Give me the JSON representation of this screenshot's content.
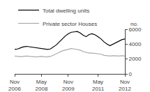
{
  "chart_data": {
    "type": "line",
    "ylabel": "no.",
    "categories": [
      "Nov\n2006",
      null,
      null,
      null,
      null,
      null,
      null,
      null,
      null,
      "May\n2008",
      null,
      null,
      null,
      null,
      null,
      null,
      null,
      null,
      "Nov\n2009",
      null,
      null,
      null,
      null,
      null,
      null,
      null,
      null,
      null,
      "May\n2011",
      null,
      null,
      null,
      null,
      null,
      null,
      null,
      null,
      "Nov\n2012"
    ],
    "series": [
      {
        "name": "Total dwelling units",
        "color": "#000000",
        "values": [
          3300,
          3350,
          3500,
          3650,
          3700,
          3650,
          3550,
          3500,
          3450,
          3400,
          3350,
          3300,
          3350,
          3600,
          3900,
          4300,
          4700,
          5100,
          5400,
          5600,
          5650,
          5700,
          5500,
          5200,
          5000,
          5300,
          5400,
          5250,
          5000,
          4700,
          4300,
          4000,
          3800,
          4000,
          4200,
          4400,
          4600,
          4700
        ]
      },
      {
        "name": "Private sector Houses",
        "color": "#aaaaaa",
        "values": [
          2400,
          2350,
          2300,
          2350,
          2400,
          2350,
          2300,
          2280,
          2300,
          2350,
          2300,
          2280,
          2350,
          2500,
          2700,
          2900,
          3100,
          3200,
          3300,
          3400,
          3350,
          3300,
          3200,
          3000,
          2900,
          2800,
          2800,
          2750,
          2700,
          2650,
          2500,
          2450,
          2400,
          2450,
          2400,
          2400,
          2450,
          2400
        ]
      }
    ],
    "ylim": [
      0,
      6000
    ],
    "yticks": [
      0,
      2000,
      4000,
      6000
    ],
    "grid": false,
    "legend": "upper left"
  }
}
